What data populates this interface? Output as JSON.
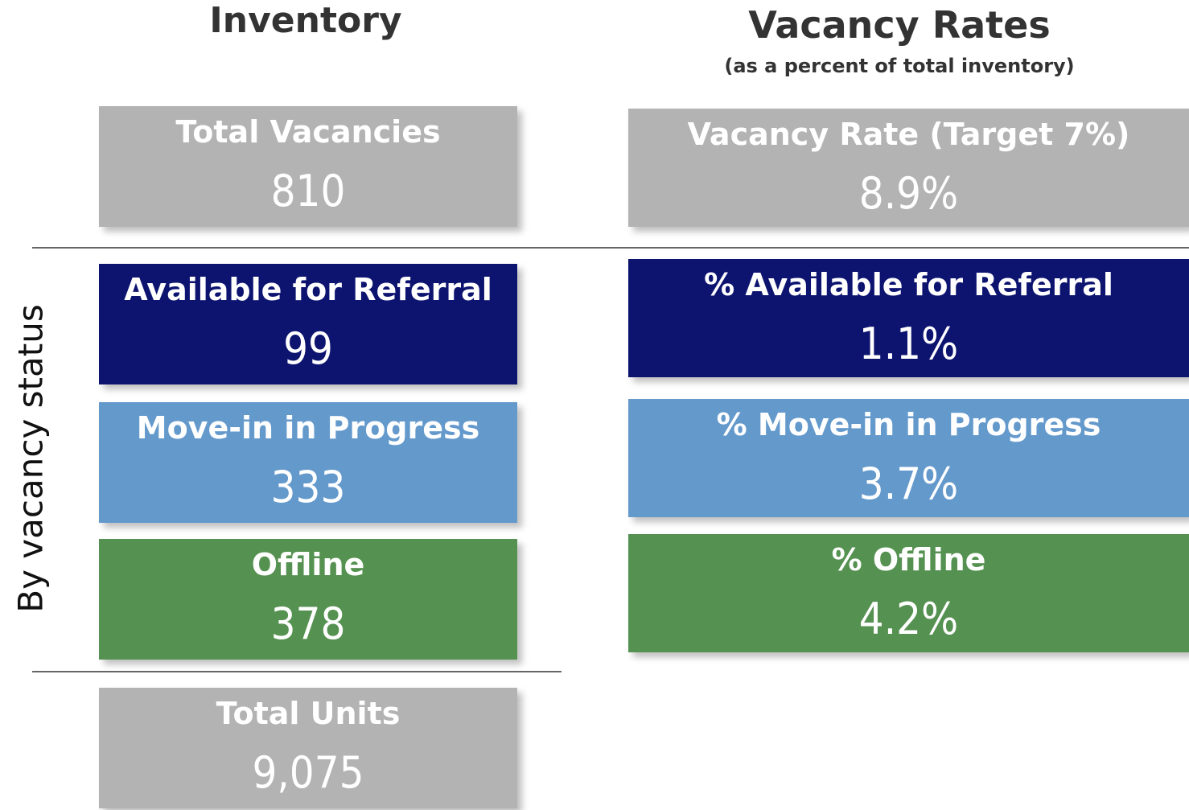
{
  "headers": {
    "inventory": "Inventory",
    "rates_title": "Vacancy Rates",
    "rates_subtitle": "(as a percent of total inventory)"
  },
  "side_label": "By vacancy status",
  "inventory_cards": [
    {
      "label": "Total Vacancies",
      "value": "810",
      "color": "#b3b3b3"
    },
    {
      "label": "Available for Referral",
      "value": "99",
      "color": "#0d1470"
    },
    {
      "label": "Move-in in Progress",
      "value": "333",
      "color": "#6499cc"
    },
    {
      "label": "Offline",
      "value": "378",
      "color": "#559150"
    },
    {
      "label": "Total Units",
      "value": "9,075",
      "color": "#b3b3b3"
    }
  ],
  "rate_cards": [
    {
      "label": "Vacancy Rate (Target 7%)",
      "value": "8.9%",
      "color": "#b3b3b3"
    },
    {
      "label": "% Available for Referral",
      "value": "1.1%",
      "color": "#0d1470"
    },
    {
      "label": "% Move-in in Progress",
      "value": "3.7%",
      "color": "#6499cc"
    },
    {
      "label": "% Offline",
      "value": "4.2%",
      "color": "#559150"
    }
  ]
}
